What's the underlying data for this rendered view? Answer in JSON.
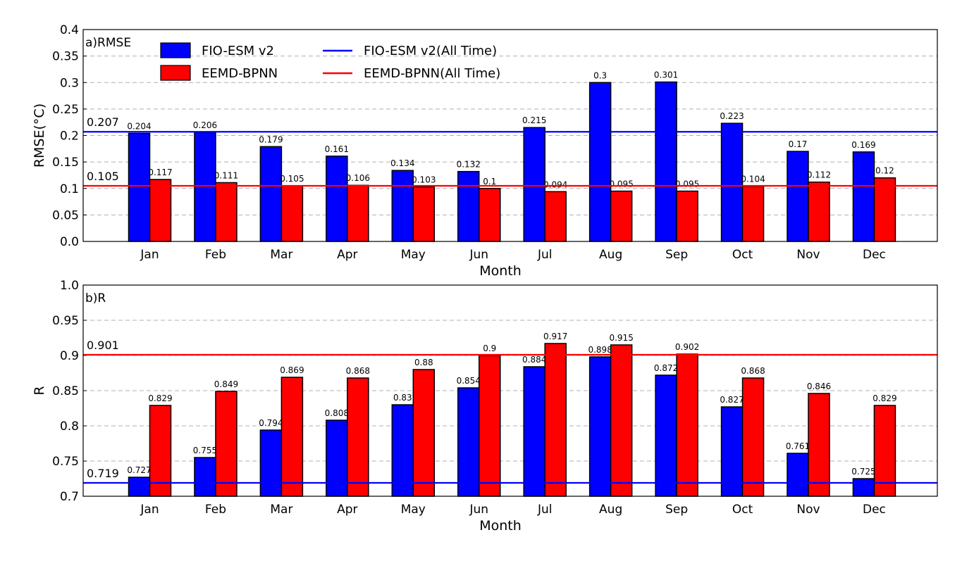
{
  "chart_data": [
    {
      "type": "bar",
      "title": "a)RMSE",
      "xlabel": "Month",
      "ylabel": "RMSE(°C)",
      "ylim": [
        0,
        0.4
      ],
      "yticks": [
        "0.0",
        "0.05",
        "0.1",
        "0.15",
        "0.2",
        "0.25",
        "0.3",
        "0.35",
        "0.4"
      ],
      "grid": "horizontal dashed",
      "categories": [
        "Jan",
        "Feb",
        "Mar",
        "Apr",
        "May",
        "Jun",
        "Jul",
        "Aug",
        "Sep",
        "Oct",
        "Nov",
        "Dec"
      ],
      "series": [
        {
          "name": "FIO-ESM v2",
          "color": "#0000ff",
          "values": [
            0.204,
            0.206,
            0.179,
            0.161,
            0.134,
            0.132,
            0.215,
            0.3,
            0.301,
            0.223,
            0.17,
            0.169
          ],
          "labels": [
            "0.204",
            "0.206",
            "0.179",
            "0.161",
            "0.134",
            "0.132",
            "0.215",
            "0.3",
            "0.301",
            "0.223",
            "0.17",
            "0.169"
          ]
        },
        {
          "name": "EEMD-BPNN",
          "color": "#ff0000",
          "values": [
            0.117,
            0.111,
            0.105,
            0.106,
            0.103,
            0.1,
            0.094,
            0.095,
            0.095,
            0.104,
            0.112,
            0.12
          ],
          "labels": [
            "0.117",
            "0.111",
            "0.105",
            "0.106",
            "0.103",
            "0.1",
            "0.094",
            "0.095",
            "0.095",
            "0.104",
            "0.112",
            "0.12"
          ]
        }
      ],
      "reference_lines": [
        {
          "name": "FIO-ESM v2(All Time)",
          "color": "#0000ff",
          "value": 0.207,
          "label": "0.207"
        },
        {
          "name": "EEMD-BPNN(All Time)",
          "color": "#ff0000",
          "value": 0.105,
          "label": "0.105"
        }
      ],
      "legend": {
        "placement": "top-left",
        "items": [
          {
            "kind": "bar",
            "label": "FIO-ESM v2",
            "color": "#0000ff"
          },
          {
            "kind": "bar",
            "label": "EEMD-BPNN",
            "color": "#ff0000"
          },
          {
            "kind": "line",
            "label": "FIO-ESM v2(All Time)",
            "color": "#0000ff"
          },
          {
            "kind": "line",
            "label": "EEMD-BPNN(All Time)",
            "color": "#ff0000"
          }
        ]
      }
    },
    {
      "type": "bar",
      "title": "b)R",
      "xlabel": "Month",
      "ylabel": "R",
      "ylim": [
        0.7,
        1.0
      ],
      "yticks": [
        "0.7",
        "0.75",
        "0.8",
        "0.85",
        "0.9",
        "0.95",
        "1.0"
      ],
      "grid": "horizontal dashed",
      "categories": [
        "Jan",
        "Feb",
        "Mar",
        "Apr",
        "May",
        "Jun",
        "Jul",
        "Aug",
        "Sep",
        "Oct",
        "Nov",
        "Dec"
      ],
      "series": [
        {
          "name": "FIO-ESM v2",
          "color": "#0000ff",
          "values": [
            0.727,
            0.755,
            0.794,
            0.808,
            0.83,
            0.854,
            0.884,
            0.898,
            0.872,
            0.827,
            0.761,
            0.725
          ],
          "labels": [
            "0.727",
            "0.755",
            "0.794",
            "0.808",
            "0.83",
            "0.854",
            "0.884",
            "0.898",
            "0.872",
            "0.827",
            "0.761",
            "0.725"
          ]
        },
        {
          "name": "EEMD-BPNN",
          "color": "#ff0000",
          "values": [
            0.829,
            0.849,
            0.869,
            0.868,
            0.88,
            0.9,
            0.917,
            0.915,
            0.902,
            0.868,
            0.846,
            0.829
          ],
          "labels": [
            "0.829",
            "0.849",
            "0.869",
            "0.868",
            "0.88",
            "0.9",
            "0.917",
            "0.915",
            "0.902",
            "0.868",
            "0.846",
            "0.829"
          ]
        }
      ],
      "reference_lines": [
        {
          "name": "EEMD-BPNN(All Time)",
          "color": "#ff0000",
          "value": 0.901,
          "label": "0.901"
        },
        {
          "name": "FIO-ESM v2(All Time)",
          "color": "#0000ff",
          "value": 0.719,
          "label": "0.719"
        }
      ]
    }
  ]
}
